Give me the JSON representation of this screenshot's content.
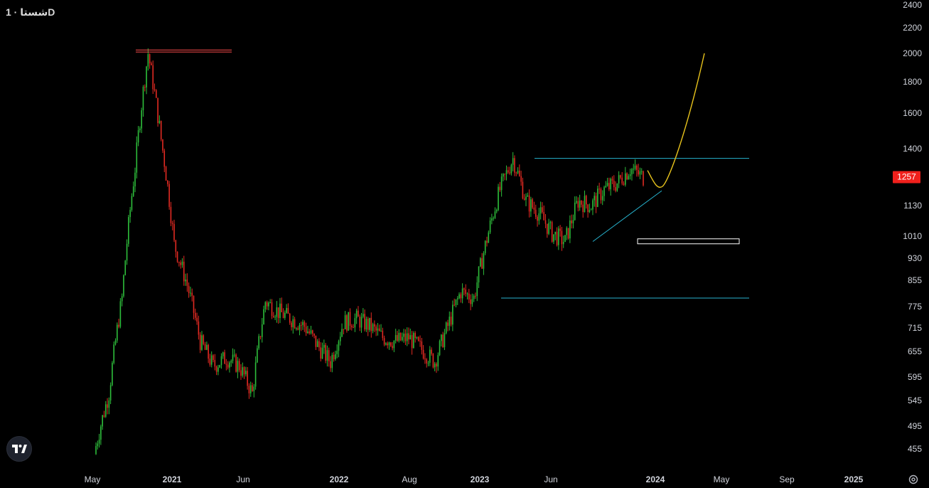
{
  "header": {
    "symbol_title": "شستا · 1D"
  },
  "price_badge": {
    "value": "1257",
    "color": "#f0201c"
  },
  "colors": {
    "up": "#2ebd3b",
    "down": "#e12a22",
    "trend": "#27b4cf",
    "projection": "#e8c31c",
    "resistance_red": "#ff4d4d"
  },
  "icons": {
    "logo": "tradingview-logo-icon",
    "settings": "gear-icon"
  },
  "chart_data": {
    "type": "line",
    "scale": "log",
    "y_ticks": [
      "2400",
      "2200",
      "2000",
      "1800",
      "1600",
      "1400",
      "1130",
      "1010",
      "930",
      "855",
      "775",
      "715",
      "655",
      "595",
      "545",
      "495",
      "455"
    ],
    "x_ticks": [
      {
        "label": "May",
        "year": false
      },
      {
        "label": "2021",
        "year": true
      },
      {
        "label": "Jun",
        "year": false
      },
      {
        "label": "2022",
        "year": true
      },
      {
        "label": "Aug",
        "year": false
      },
      {
        "label": "2023",
        "year": true
      },
      {
        "label": "Jun",
        "year": false
      },
      {
        "label": "2024",
        "year": true
      },
      {
        "label": "May",
        "year": false
      },
      {
        "label": "Sep",
        "year": false
      },
      {
        "label": "2025",
        "year": true
      }
    ],
    "x": [
      "2020-05",
      "2020-07",
      "2020-08",
      "2020-09",
      "2020-10",
      "2020-11",
      "2020-12",
      "2021-01",
      "2021-02",
      "2021-03",
      "2021-04",
      "2021-05",
      "2021-06",
      "2021-07",
      "2021-08",
      "2021-09",
      "2021-10",
      "2021-11",
      "2021-12",
      "2022-01",
      "2022-02",
      "2022-03",
      "2022-04",
      "2022-05",
      "2022-06",
      "2022-07",
      "2022-08",
      "2022-09",
      "2022-10",
      "2022-11",
      "2022-12",
      "2023-01",
      "2023-02",
      "2023-03",
      "2023-04",
      "2023-05",
      "2023-06",
      "2023-07",
      "2023-08",
      "2023-09",
      "2023-10",
      "2023-11",
      "2023-12"
    ],
    "close": [
      460,
      560,
      800,
      1300,
      2000,
      1450,
      980,
      840,
      680,
      620,
      640,
      620,
      560,
      790,
      760,
      740,
      720,
      670,
      630,
      730,
      740,
      720,
      690,
      680,
      690,
      660,
      630,
      720,
      820,
      800,
      1000,
      1200,
      1350,
      1150,
      1100,
      1020,
      990,
      1150,
      1130,
      1200,
      1230,
      1300,
      1257
    ],
    "series": [
      {
        "values": [
          460,
          560,
          800,
          1300,
          2000,
          1450,
          980,
          840,
          680,
          620,
          640,
          620,
          560,
          790,
          760,
          740,
          720,
          670,
          630,
          730,
          740,
          720,
          690,
          680,
          690,
          660,
          630,
          720,
          820,
          800,
          1000,
          1200,
          1350,
          1150,
          1100,
          1020,
          990,
          1150,
          1130,
          1200,
          1230,
          1300,
          1257
        ]
      }
    ],
    "annotations": [
      {
        "kind": "horizontal",
        "value": 1350
      },
      {
        "kind": "horizontal",
        "value": 800
      },
      {
        "kind": "horizontal",
        "value": 2010
      },
      {
        "kind": "horizontal",
        "value": 2025
      },
      {
        "kind": "trendline",
        "from": 990,
        "to": 1195
      },
      {
        "kind": "box",
        "from": 985,
        "to": 1000
      },
      {
        "kind": "projection",
        "from": 1290,
        "to": 2000
      }
    ]
  }
}
